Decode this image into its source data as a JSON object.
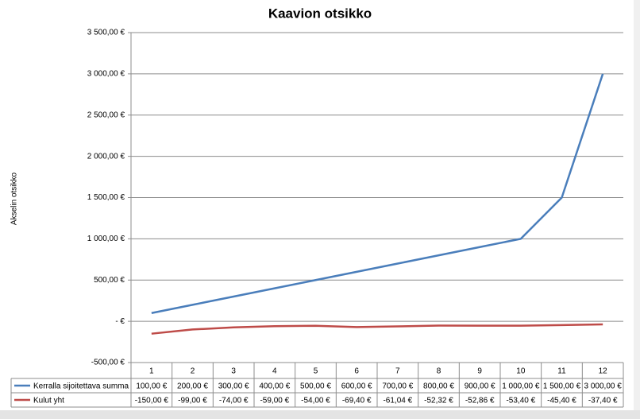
{
  "chart_data": {
    "type": "line",
    "title": "Kaavion otsikko",
    "y_label": "Akselin otsikko",
    "categories": [
      "1",
      "2",
      "3",
      "4",
      "5",
      "6",
      "7",
      "8",
      "9",
      "10",
      "11",
      "12"
    ],
    "series": [
      {
        "name": "Kerralla sijoitettava summa",
        "color": "#4a7ebb",
        "values": [
          100,
          200,
          300,
          400,
          500,
          600,
          700,
          800,
          900,
          1000,
          1500,
          3000
        ],
        "value_labels": [
          "100,00 €",
          "200,00 €",
          "300,00 €",
          "400,00 €",
          "500,00 €",
          "600,00 €",
          "700,00 €",
          "800,00 €",
          "900,00 €",
          "1 000,00 €",
          "1 500,00 €",
          "3 000,00 €"
        ]
      },
      {
        "name": "Kulut yht",
        "color": "#be4b48",
        "values": [
          -150,
          -99,
          -74,
          -59,
          -54,
          -69.4,
          -61.04,
          -52.32,
          -52.86,
          -53.4,
          -45.4,
          -37.4
        ],
        "value_labels": [
          "-150,00 €",
          "-99,00 €",
          "-74,00 €",
          "-59,00 €",
          "-54,00 €",
          "-69,40 €",
          "-61,04 €",
          "-52,32 €",
          "-52,86 €",
          "-53,40 €",
          "-45,40 €",
          "-37,40 €"
        ]
      }
    ],
    "ylim": [
      -500,
      3500
    ],
    "yticks": [
      {
        "value": -500,
        "label": "-500,00 €"
      },
      {
        "value": 0,
        "label": "-   €"
      },
      {
        "value": 500,
        "label": "500,00 €"
      },
      {
        "value": 1000,
        "label": "1 000,00 €"
      },
      {
        "value": 1500,
        "label": "1 500,00 €"
      },
      {
        "value": 2000,
        "label": "2 000,00 €"
      },
      {
        "value": 2500,
        "label": "2 500,00 €"
      },
      {
        "value": 3000,
        "label": "3 000,00 €"
      },
      {
        "value": 3500,
        "label": "3 500,00 €"
      }
    ],
    "grid": true
  }
}
